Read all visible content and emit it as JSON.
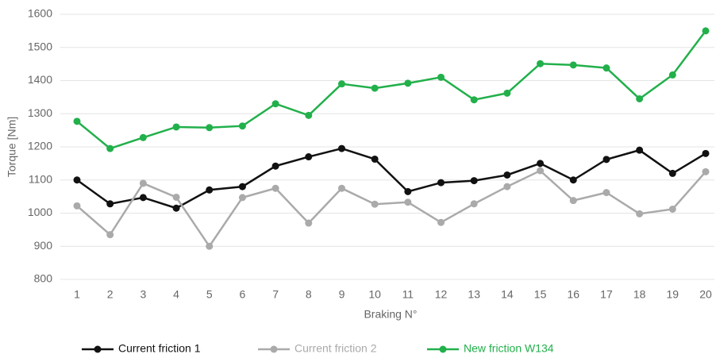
{
  "chart_data": {
    "type": "line",
    "x_label": "Braking N°",
    "y_label": "Torque [Nm]",
    "categories": [
      "1",
      "2",
      "3",
      "4",
      "5",
      "6",
      "7",
      "8",
      "9",
      "10",
      "11",
      "12",
      "13",
      "14",
      "15",
      "16",
      "17",
      "18",
      "19",
      "20"
    ],
    "series": [
      {
        "name": "Current friction 1",
        "color": "#111111",
        "values": [
          1100,
          1028,
          1047,
          1015,
          1070,
          1080,
          1142,
          1170,
          1195,
          1163,
          1065,
          1092,
          1098,
          1115,
          1150,
          1100,
          1162,
          1190,
          1120,
          1180
        ]
      },
      {
        "name": "Current friction 2",
        "color": "#aaaaaa",
        "values": [
          1022,
          935,
          1090,
          1048,
          900,
          1047,
          1075,
          970,
          1075,
          1027,
          1033,
          972,
          1028,
          1080,
          1128,
          1038,
          1062,
          998,
          1012,
          1125
        ]
      },
      {
        "name": "New friction W134",
        "color": "#22b04b",
        "values": [
          1277,
          1195,
          1228,
          1260,
          1258,
          1263,
          1330,
          1295,
          1390,
          1377,
          1392,
          1410,
          1342,
          1362,
          1451,
          1447,
          1438,
          1345,
          1417,
          1550
        ]
      }
    ],
    "ylim": [
      800,
      1600
    ],
    "yticks": [
      800,
      900,
      1000,
      1100,
      1200,
      1300,
      1400,
      1500,
      1600
    ],
    "grid": true,
    "legend": "bottom"
  }
}
